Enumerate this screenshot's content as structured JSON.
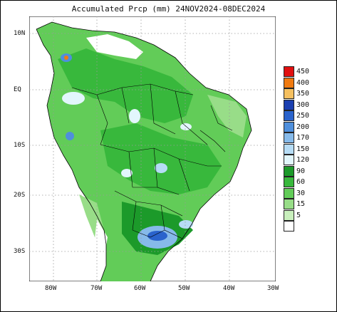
{
  "map": {
    "title": "Accumulated Prcp (mm) 24NOV2024-08DEC2024",
    "lat_labels": [
      "10N",
      "EQ",
      "10S",
      "20S",
      "30S"
    ],
    "lon_labels": [
      "80W",
      "70W",
      "60W",
      "50W",
      "40W",
      "30W"
    ]
  },
  "legend": {
    "items": [
      {
        "label": "450",
        "color": "#e01010"
      },
      {
        "label": "400",
        "color": "#f07a10"
      },
      {
        "label": "350",
        "color": "#f5c060"
      },
      {
        "label": "300",
        "color": "#1a3fb0"
      },
      {
        "label": "250",
        "color": "#2a63cc"
      },
      {
        "label": "200",
        "color": "#4f8fdc"
      },
      {
        "label": "170",
        "color": "#86baea"
      },
      {
        "label": "150",
        "color": "#b6dcf5"
      },
      {
        "label": "120",
        "color": "#e2f6fc"
      },
      {
        "label": "90",
        "color": "#1c9a2a"
      },
      {
        "label": "60",
        "color": "#38b83c"
      },
      {
        "label": "30",
        "color": "#62cc58"
      },
      {
        "label": "15",
        "color": "#98dd88"
      },
      {
        "label": "5",
        "color": "#c8efbc"
      },
      {
        "label": "",
        "color": "#ffffff"
      }
    ]
  },
  "colors": {
    "land_light": "#98dd88",
    "land_mid": "#62cc58",
    "land_dark": "#38b83c",
    "land_darkest": "#1c9a2a",
    "wet_light": "#e2f6fc",
    "wet_blue": "#86baea",
    "wet_deep": "#2a63cc",
    "orange": "#f07a10",
    "grid": "#9a9a9a",
    "border": "#000000"
  }
}
